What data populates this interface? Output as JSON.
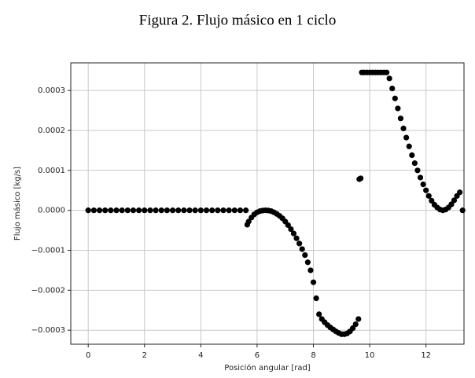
{
  "chart_data": {
    "type": "scatter",
    "title": "Figura 2. Flujo másico en 1 ciclo",
    "x_label": "Posición angular [rad]",
    "y_label": "Flujo másico [kg/s]",
    "color": "#000000",
    "grid": true,
    "xlim": [
      -0.62,
      13.35
    ],
    "ylim": [
      -0.000335,
      0.000369
    ],
    "xticks": [
      0,
      2,
      4,
      6,
      8,
      10,
      12
    ],
    "yticks": [
      {
        "value": -0.0003,
        "label": "−0.0003"
      },
      {
        "value": -0.0002,
        "label": "−0.0002"
      },
      {
        "value": -0.0001,
        "label": "−0.0001"
      },
      {
        "value": 0,
        "label": "0.0000"
      },
      0.0001,
      0.0002,
      0.0003
    ],
    "x": [
      0,
      0.2,
      0.4,
      0.6,
      0.8,
      1,
      1.2,
      1.4,
      1.6,
      1.8,
      2,
      2.2,
      2.4,
      2.6,
      2.8,
      3,
      3.2,
      3.4,
      3.6,
      3.8,
      4,
      4.2,
      4.4,
      4.6,
      4.8,
      5,
      5.2,
      5.4,
      5.6,
      5.65,
      5.7,
      5.8,
      5.9,
      6.0,
      6.1,
      6.2,
      6.3,
      6.4,
      6.5,
      6.6,
      6.7,
      6.8,
      6.9,
      7.0,
      7.1,
      7.2,
      7.3,
      7.4,
      7.5,
      7.6,
      7.7,
      7.8,
      7.9,
      8.0,
      8.1,
      8.2,
      8.3,
      8.4,
      8.5,
      8.6,
      8.7,
      8.8,
      8.9,
      9.0,
      9.1,
      9.2,
      9.3,
      9.4,
      9.5,
      9.6,
      9.63,
      9.68,
      9.72,
      9.8,
      9.9,
      10.0,
      10.1,
      10.2,
      10.3,
      10.4,
      10.5,
      10.6,
      10.7,
      10.8,
      10.9,
      11.0,
      11.1,
      11.2,
      11.3,
      11.4,
      11.5,
      11.6,
      11.7,
      11.8,
      11.9,
      12.0,
      12.1,
      12.2,
      12.3,
      12.4,
      12.5,
      12.6,
      12.7,
      12.8,
      12.9,
      13.0,
      13.1,
      13.2,
      13.3
    ],
    "values": [
      0,
      0,
      0,
      0,
      0,
      0,
      0,
      0,
      0,
      0,
      0,
      0,
      0,
      0,
      0,
      0,
      0,
      0,
      0,
      0,
      0,
      0,
      0,
      0,
      0,
      0,
      0,
      0,
      0,
      -3.6e-05,
      -2.8e-05,
      -1.8e-05,
      -1e-05,
      -5e-06,
      -2e-06,
      -5e-07,
      0,
      -5e-07,
      -2e-06,
      -5e-06,
      -9e-06,
      -1.4e-05,
      -2e-05,
      -2.8e-05,
      -3.7e-05,
      -4.7e-05,
      -5.8e-05,
      -7e-05,
      -8.3e-05,
      -9.7e-05,
      -0.000112,
      -0.00013,
      -0.00015,
      -0.00018,
      -0.00022,
      -0.00026,
      -0.000272,
      -0.00028,
      -0.000287,
      -0.000293,
      -0.000298,
      -0.000303,
      -0.000307,
      -0.00031,
      -0.00031,
      -0.000308,
      -0.000303,
      -0.000295,
      -0.000285,
      -0.000272,
      7.8e-05,
      8e-05,
      0.000345,
      0.000345,
      0.000345,
      0.000345,
      0.000345,
      0.000345,
      0.000345,
      0.000345,
      0.000345,
      0.000345,
      0.00033,
      0.000305,
      0.00028,
      0.000255,
      0.00023,
      0.000205,
      0.000182,
      0.00016,
      0.000138,
      0.000118,
      0.0001,
      8.2e-05,
      6.5e-05,
      5e-05,
      3.6e-05,
      2.4e-05,
      1.4e-05,
      7e-06,
      2e-06,
      0,
      2e-06,
      7e-06,
      1.5e-05,
      2.5e-05,
      3.6e-05,
      4.5e-05,
      0
    ]
  }
}
